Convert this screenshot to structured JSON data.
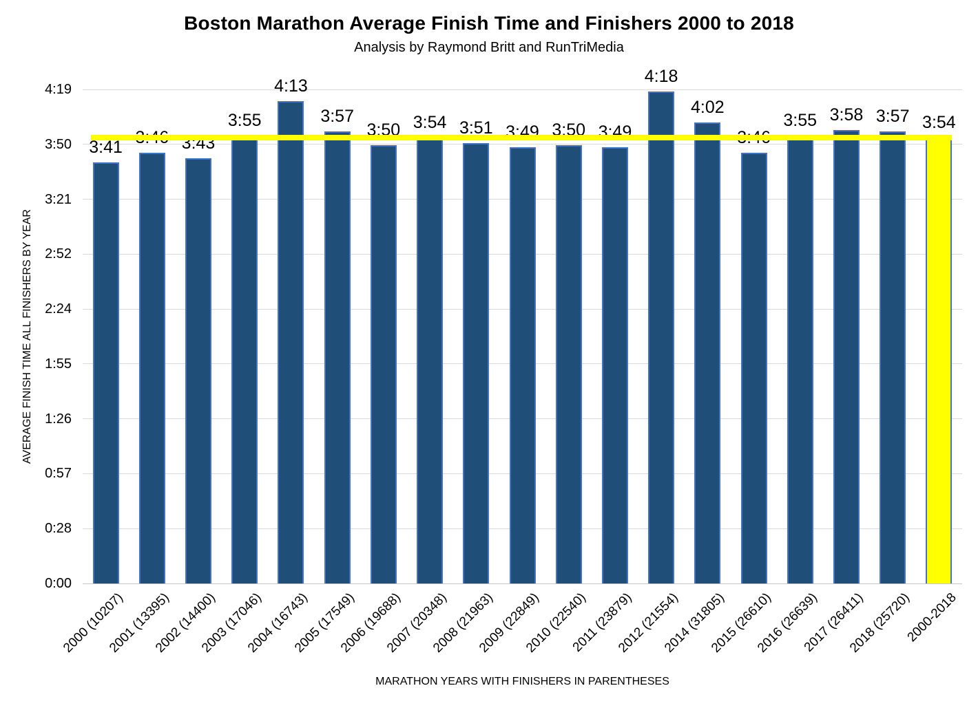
{
  "page": {
    "title": "Boston Marathon Average Finish Time and Finishers 2000 to 2018",
    "subtitle": "Analysis by Raymond Britt and RunTriMedia"
  },
  "chart_data": {
    "type": "bar",
    "title": "Boston Marathon Average Finish Time and Finishers 2000 to 2018",
    "subtitle": "Analysis by Raymond Britt and RunTriMedia",
    "xlabel": "MARATHON YEARS WITH FINISHERS IN PARENTHESES",
    "ylabel": "AVERAGE FINISH TIME ALL FINISHERS BY YEAR",
    "categories": [
      "2000 (10207)",
      "2001 (13395)",
      "2002 (14400)",
      "2003 (17046)",
      "2004 (16743)",
      "2005 (17549)",
      "2006 (19688)",
      "2007 (20348)",
      "2008 (21963)",
      "2009 (22849)",
      "2010 (22540)",
      "2011 (23879)",
      "2012 (21554)",
      "2014 (31805)",
      "2015 (26610)",
      "2016 (26639)",
      "2017 (26411)",
      "2018 (25720)",
      "2000-2018"
    ],
    "value_labels": [
      "3:41",
      "3:46",
      "3:43",
      "3:55",
      "4:13",
      "3:57",
      "3:50",
      "3:54",
      "3:51",
      "3:49",
      "3:50",
      "3:49",
      "4:18",
      "4:02",
      "3:46",
      "3:55",
      "3:58",
      "3:57",
      "3:54"
    ],
    "values_minutes": [
      221,
      226,
      223,
      235,
      253,
      237,
      230,
      234,
      231,
      229,
      230,
      229,
      258,
      242,
      226,
      235,
      238,
      237,
      234
    ],
    "yticks": {
      "labels": [
        "0:00",
        "0:28",
        "0:57",
        "1:26",
        "1:55",
        "2:24",
        "2:52",
        "3:21",
        "3:50",
        "4:19"
      ],
      "minutes": [
        0,
        28.8,
        57.6,
        86.4,
        115.2,
        144,
        172.8,
        201.6,
        230.4,
        259.2
      ]
    },
    "ylim_minutes": [
      0,
      259.2
    ],
    "grid": true,
    "legend": false,
    "highlighted_category": "2000-2018",
    "average_line": {
      "value_label": "3:54",
      "minutes": 234,
      "category": "2000-2018",
      "color": "#ffff00"
    },
    "colors": {
      "bar_fill": "#1f4e79",
      "bar_border": "#4472c4",
      "highlight_fill": "#ffff00",
      "gridline": "#d9d9d9",
      "text": "#000000"
    }
  }
}
